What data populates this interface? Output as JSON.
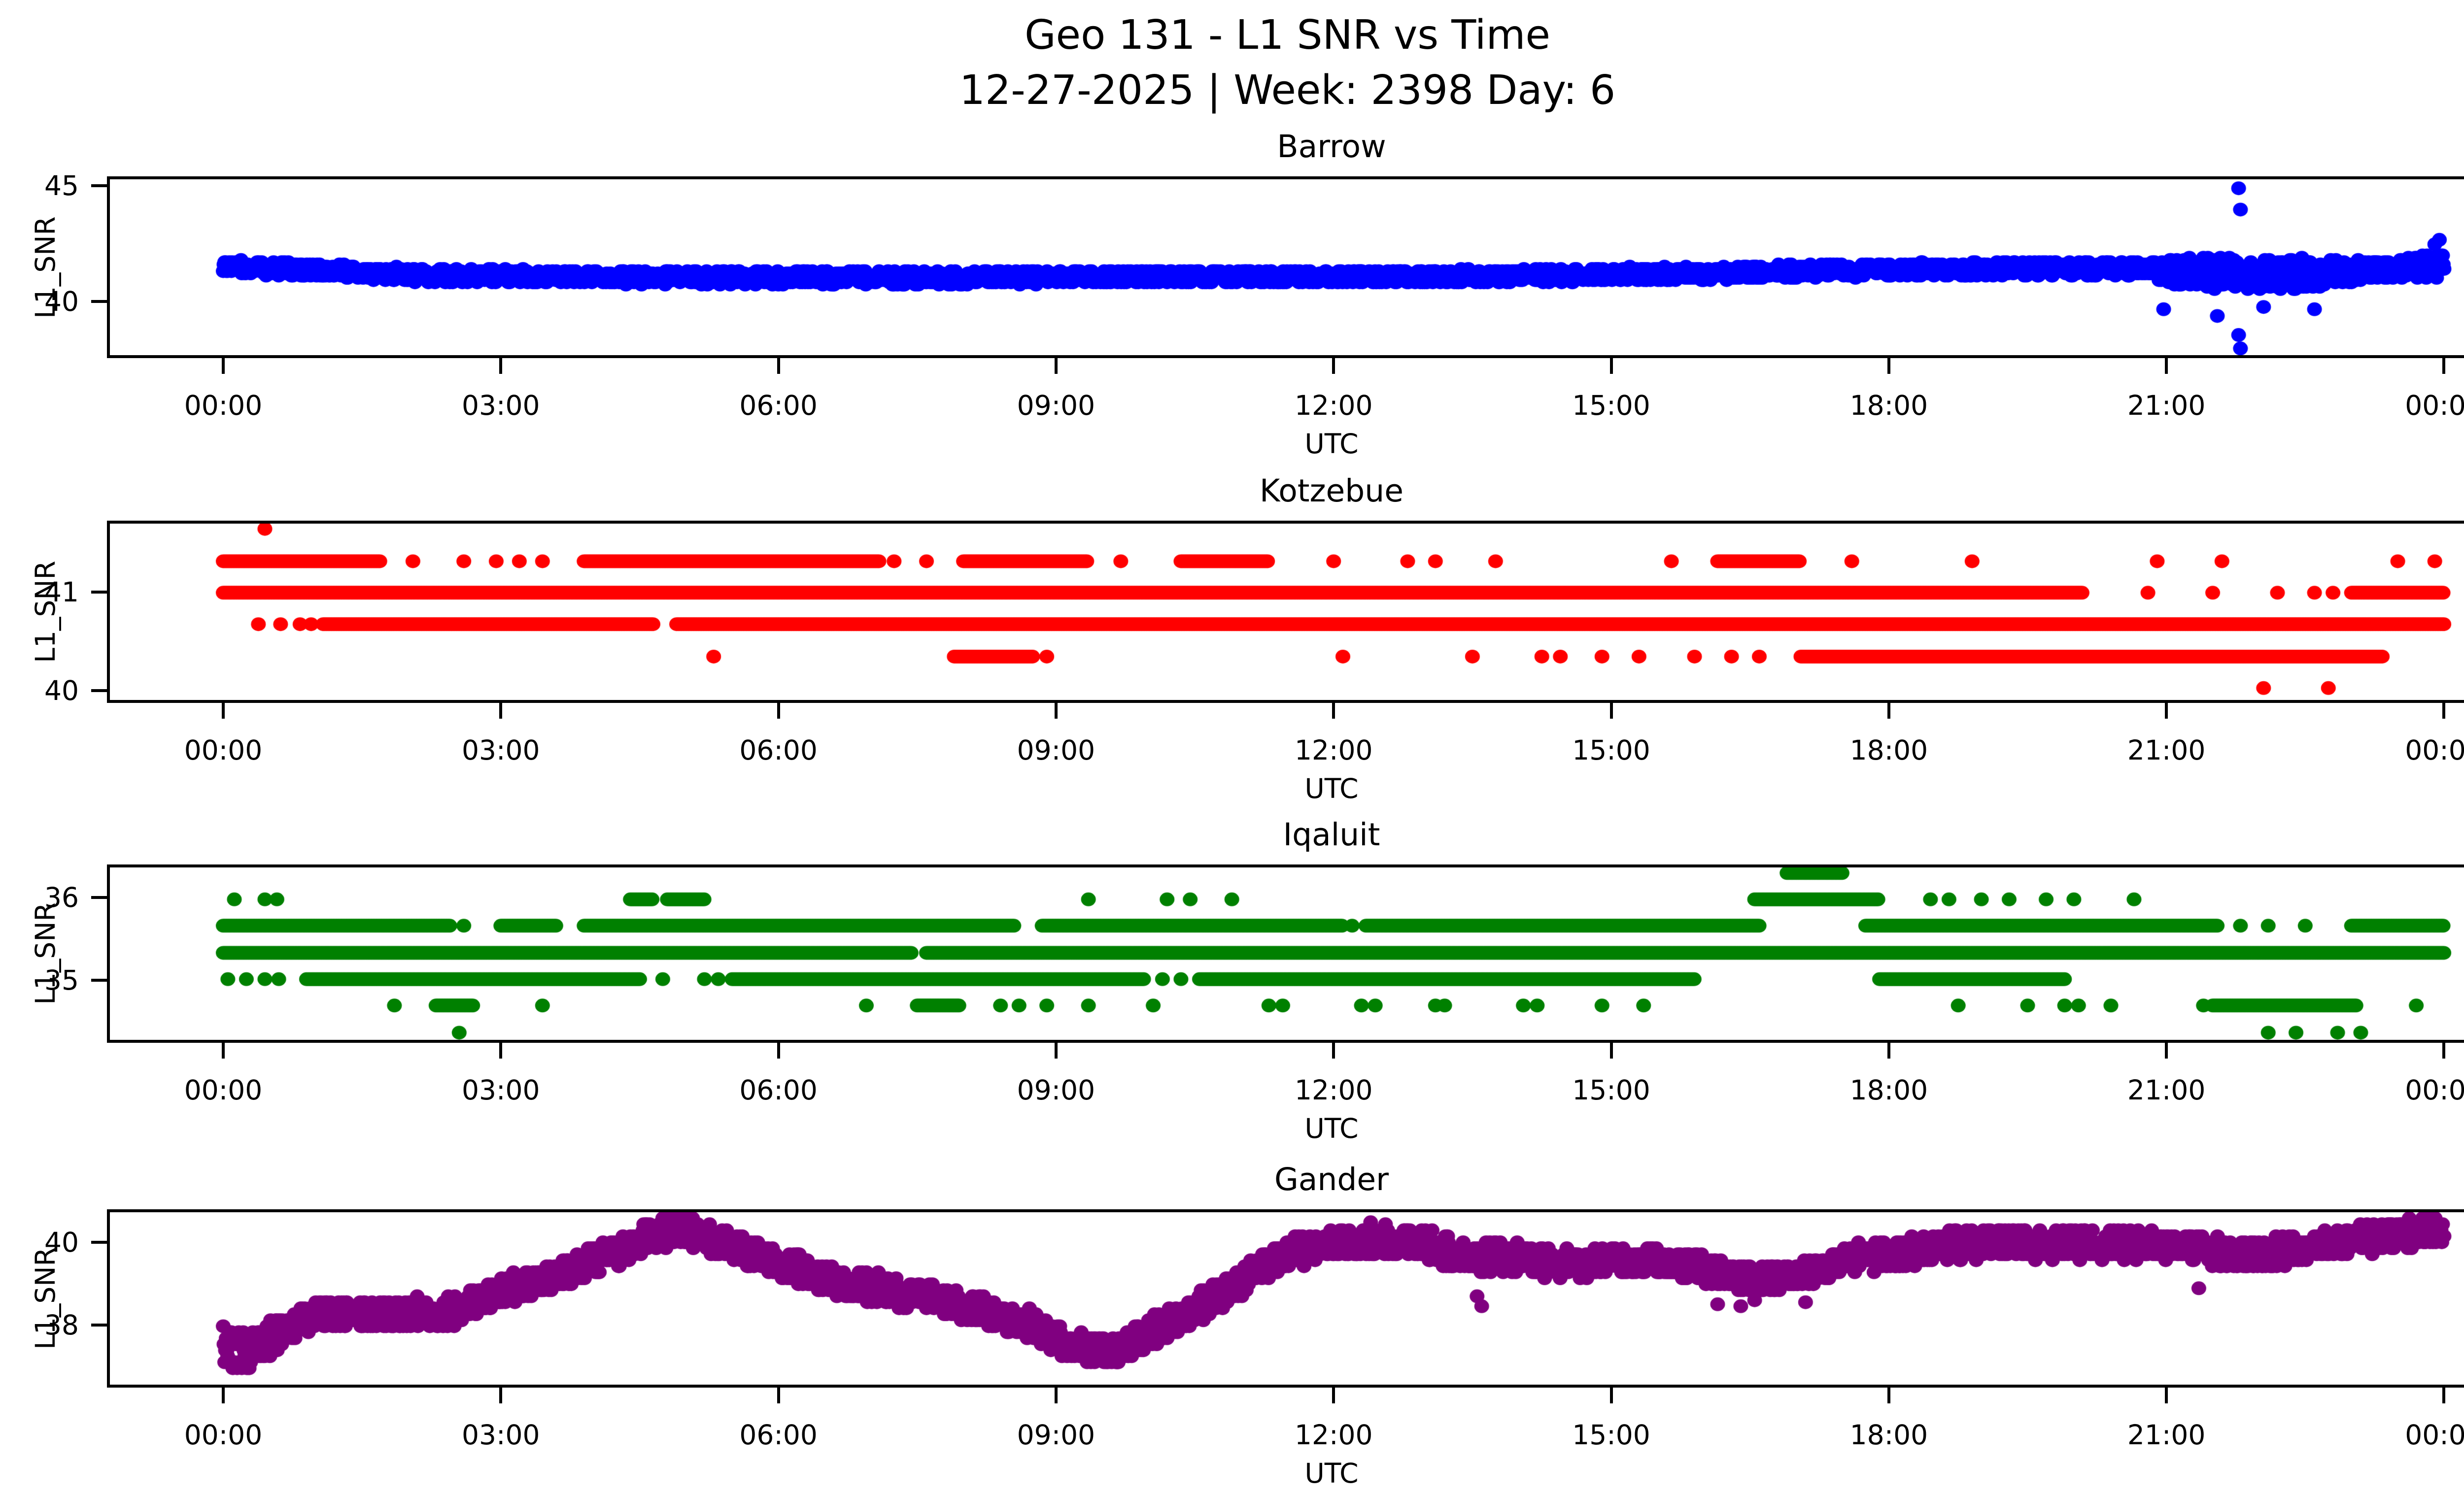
{
  "figure": {
    "suptitle_line1": "Geo 131 - L1 SNR vs Time",
    "suptitle_line2": "12-27-2025 | Week: 2398 Day: 6"
  },
  "axes": {
    "xlabel": "UTC",
    "ylabel": "L1_SNR",
    "x_tick_labels": [
      "00:00",
      "03:00",
      "06:00",
      "09:00",
      "12:00",
      "15:00",
      "18:00",
      "21:00",
      "00:00"
    ],
    "x_tick_hours": [
      0,
      3,
      6,
      9,
      12,
      15,
      18,
      21,
      24
    ]
  },
  "chart_data": {
    "type": "scatter",
    "x_unit": "hours_utc",
    "x_range_hours": [
      0,
      24
    ],
    "stations": [
      {
        "title": "Barrow",
        "color": "#0000ff",
        "mode": "band",
        "ylim": [
          37.55,
          45.4
        ],
        "yticks": [
          [
            45,
            "45"
          ],
          [
            40,
            "40"
          ]
        ],
        "quant": 0.1,
        "trend": [
          [
            0,
            41.55
          ],
          [
            0.3,
            41.45
          ],
          [
            1.0,
            41.35
          ],
          [
            1.6,
            41.2
          ],
          [
            2.2,
            41.1
          ],
          [
            4,
            41.05
          ],
          [
            6,
            41.0
          ],
          [
            8,
            41.0
          ],
          [
            9,
            41.05
          ],
          [
            13,
            41.05
          ],
          [
            14,
            41.1
          ],
          [
            15,
            41.15
          ],
          [
            16,
            41.2
          ],
          [
            17,
            41.3
          ],
          [
            18,
            41.35
          ],
          [
            19,
            41.4
          ],
          [
            20.5,
            41.4
          ],
          [
            21,
            41.35
          ],
          [
            21.6,
            41.2
          ],
          [
            21.9,
            41.1
          ],
          [
            22.3,
            41.2
          ],
          [
            23,
            41.3
          ],
          [
            23.6,
            41.45
          ],
          [
            24,
            41.6
          ]
        ],
        "spread": [
          [
            0,
            0.3
          ],
          [
            20.8,
            0.3
          ],
          [
            21.1,
            0.7
          ],
          [
            22.6,
            0.7
          ],
          [
            23.1,
            0.45
          ],
          [
            23.6,
            0.45
          ],
          [
            24,
            0.6
          ]
        ],
        "outliers": [
          [
            21.78,
            45.0
          ],
          [
            21.8,
            44.05
          ],
          [
            21.78,
            38.45
          ],
          [
            21.8,
            37.85
          ],
          [
            21.55,
            39.3
          ],
          [
            20.97,
            39.6
          ],
          [
            22.05,
            39.7
          ],
          [
            22.6,
            39.6
          ],
          [
            23.9,
            42.5
          ],
          [
            23.95,
            42.7
          ]
        ]
      },
      {
        "title": "Kotzebue",
        "color": "#ff0000",
        "mode": "levels",
        "ylim": [
          39.875,
          41.725
        ],
        "yticks": [
          [
            41,
            "41"
          ],
          [
            40,
            "40"
          ]
        ],
        "levels": [
          {
            "value": 41.67,
            "segments": [],
            "dots": [
              0.45
            ]
          },
          {
            "value": 41.33,
            "segments": [
              [
                0,
                1.7
              ],
              [
                3.9,
                7.1
              ],
              [
                8.0,
                9.35
              ],
              [
                10.35,
                11.3
              ],
              [
                16.15,
                17.05
              ]
            ],
            "dots": [
              2.05,
              2.6,
              2.95,
              3.2,
              3.45,
              7.25,
              7.6,
              9.7,
              12.0,
              12.8,
              13.1,
              13.75,
              15.65,
              17.6,
              18.9,
              20.9,
              21.6,
              23.5,
              23.9
            ]
          },
          {
            "value": 41.0,
            "segments": [
              [
                0,
                20.1
              ],
              [
                23.0,
                24
              ]
            ],
            "dots": [
              20.8,
              21.5,
              22.2,
              22.6,
              22.8
            ]
          },
          {
            "value": 40.67,
            "segments": [
              [
                1.08,
                4.65
              ],
              [
                4.9,
                24
              ]
            ],
            "dots": [
              0.38,
              0.62,
              0.83,
              0.95
            ]
          },
          {
            "value": 40.33,
            "segments": [
              [
                7.9,
                8.75
              ],
              [
                17.05,
                23.35
              ]
            ],
            "dots": [
              5.3,
              8.9,
              12.1,
              13.5,
              14.25,
              14.45,
              14.9,
              15.3,
              15.9,
              16.3,
              16.6
            ]
          },
          {
            "value": 40.0,
            "segments": [],
            "dots": [
              22.05,
              22.75
            ]
          }
        ]
      },
      {
        "title": "Iqaluit",
        "color": "#008000",
        "mode": "levels",
        "ylim": [
          34.24,
          36.4
        ],
        "yticks": [
          [
            36,
            "36"
          ],
          [
            35,
            "35"
          ]
        ],
        "levels": [
          {
            "value": 36.33,
            "segments": [
              [
                16.9,
                17.5
              ]
            ],
            "dots": []
          },
          {
            "value": 36.0,
            "segments": [
              [
                4.4,
                4.65
              ],
              [
                4.8,
                5.2
              ],
              [
                16.55,
                17.9
              ]
            ],
            "dots": [
              0.12,
              0.45,
              0.58,
              9.35,
              10.2,
              10.45,
              10.9,
              18.45,
              18.65,
              19.0,
              19.3,
              19.7,
              20.0,
              20.65
            ]
          },
          {
            "value": 35.67,
            "segments": [
              [
                0,
                2.45
              ],
              [
                3.0,
                3.6
              ],
              [
                3.9,
                8.55
              ],
              [
                8.85,
                12.1
              ],
              [
                12.35,
                16.6
              ],
              [
                17.75,
                21.55
              ],
              [
                23.0,
                24
              ]
            ],
            "dots": [
              2.6,
              12.2,
              21.8,
              22.1,
              22.5
            ]
          },
          {
            "value": 35.33,
            "segments": [
              [
                0,
                7.45
              ],
              [
                7.6,
                24
              ]
            ],
            "dots": []
          },
          {
            "value": 35.0,
            "segments": [
              [
                0.9,
                4.5
              ],
              [
                5.5,
                9.95
              ],
              [
                10.55,
                15.9
              ],
              [
                17.9,
                19.9
              ]
            ],
            "dots": [
              0.05,
              0.25,
              0.45,
              0.6,
              4.75,
              5.2,
              5.35,
              10.15,
              10.35
            ]
          },
          {
            "value": 34.67,
            "segments": [
              [
                2.3,
                2.7
              ],
              [
                7.5,
                7.95
              ],
              [
                21.5,
                23.05
              ]
            ],
            "dots": [
              1.85,
              3.45,
              6.95,
              8.4,
              8.6,
              8.9,
              9.35,
              10.05,
              11.3,
              11.45,
              12.3,
              12.45,
              13.1,
              13.2,
              14.05,
              14.2,
              14.9,
              15.35,
              18.75,
              19.5,
              19.9,
              20.05,
              20.4,
              21.4,
              23.7
            ]
          },
          {
            "value": 34.33,
            "segments": [],
            "dots": [
              2.55,
              22.1,
              22.4,
              22.85,
              23.1
            ]
          }
        ]
      },
      {
        "title": "Gander",
        "color": "#800080",
        "mode": "band",
        "ylim": [
          36.49,
          40.8
        ],
        "yticks": [
          [
            40,
            "40"
          ],
          [
            38,
            "38"
          ]
        ],
        "quant": 0.15,
        "trend": [
          [
            0,
            37.4
          ],
          [
            0.3,
            37.4
          ],
          [
            0.7,
            37.9
          ],
          [
            1.0,
            38.25
          ],
          [
            2.5,
            38.3
          ],
          [
            2.8,
            38.7
          ],
          [
            3.2,
            38.95
          ],
          [
            3.6,
            39.2
          ],
          [
            4.0,
            39.55
          ],
          [
            4.4,
            39.95
          ],
          [
            4.7,
            40.3
          ],
          [
            5.0,
            40.35
          ],
          [
            5.3,
            40.1
          ],
          [
            5.8,
            39.7
          ],
          [
            6.2,
            39.35
          ],
          [
            6.6,
            39.05
          ],
          [
            7.2,
            38.85
          ],
          [
            7.9,
            38.5
          ],
          [
            8.3,
            38.3
          ],
          [
            8.7,
            38.0
          ],
          [
            9.0,
            37.65
          ],
          [
            9.3,
            37.4
          ],
          [
            9.7,
            37.35
          ],
          [
            10.0,
            37.8
          ],
          [
            10.3,
            38.15
          ],
          [
            10.6,
            38.5
          ],
          [
            10.9,
            38.9
          ],
          [
            11.2,
            39.4
          ],
          [
            11.6,
            39.8
          ],
          [
            12.0,
            40.0
          ],
          [
            12.5,
            40.1
          ],
          [
            13.0,
            40.0
          ],
          [
            13.4,
            39.7
          ],
          [
            14.0,
            39.65
          ],
          [
            14.5,
            39.5
          ],
          [
            15.0,
            39.6
          ],
          [
            15.5,
            39.55
          ],
          [
            16.0,
            39.4
          ],
          [
            16.5,
            39.1
          ],
          [
            17.0,
            39.2
          ],
          [
            17.5,
            39.6
          ],
          [
            18.2,
            39.8
          ],
          [
            18.7,
            40.0
          ],
          [
            19.5,
            40.0
          ],
          [
            20.5,
            40.0
          ],
          [
            21.3,
            39.9
          ],
          [
            21.8,
            39.7
          ],
          [
            22.3,
            39.85
          ],
          [
            22.8,
            40.0
          ],
          [
            23.3,
            40.15
          ],
          [
            23.7,
            40.3
          ],
          [
            24,
            40.35
          ]
        ],
        "spread": [
          [
            0,
            0.55
          ],
          [
            0.7,
            0.35
          ],
          [
            24,
            0.35
          ]
        ],
        "outliers": [
          [
            0.15,
            36.9
          ],
          [
            13.55,
            38.7
          ],
          [
            13.6,
            38.45
          ],
          [
            16.15,
            38.5
          ],
          [
            16.4,
            38.45
          ],
          [
            16.55,
            38.6
          ],
          [
            17.1,
            38.55
          ],
          [
            21.35,
            38.9
          ],
          [
            4.75,
            40.65
          ],
          [
            4.85,
            40.7
          ],
          [
            12.4,
            40.55
          ],
          [
            23.8,
            40.65
          ]
        ]
      }
    ]
  }
}
